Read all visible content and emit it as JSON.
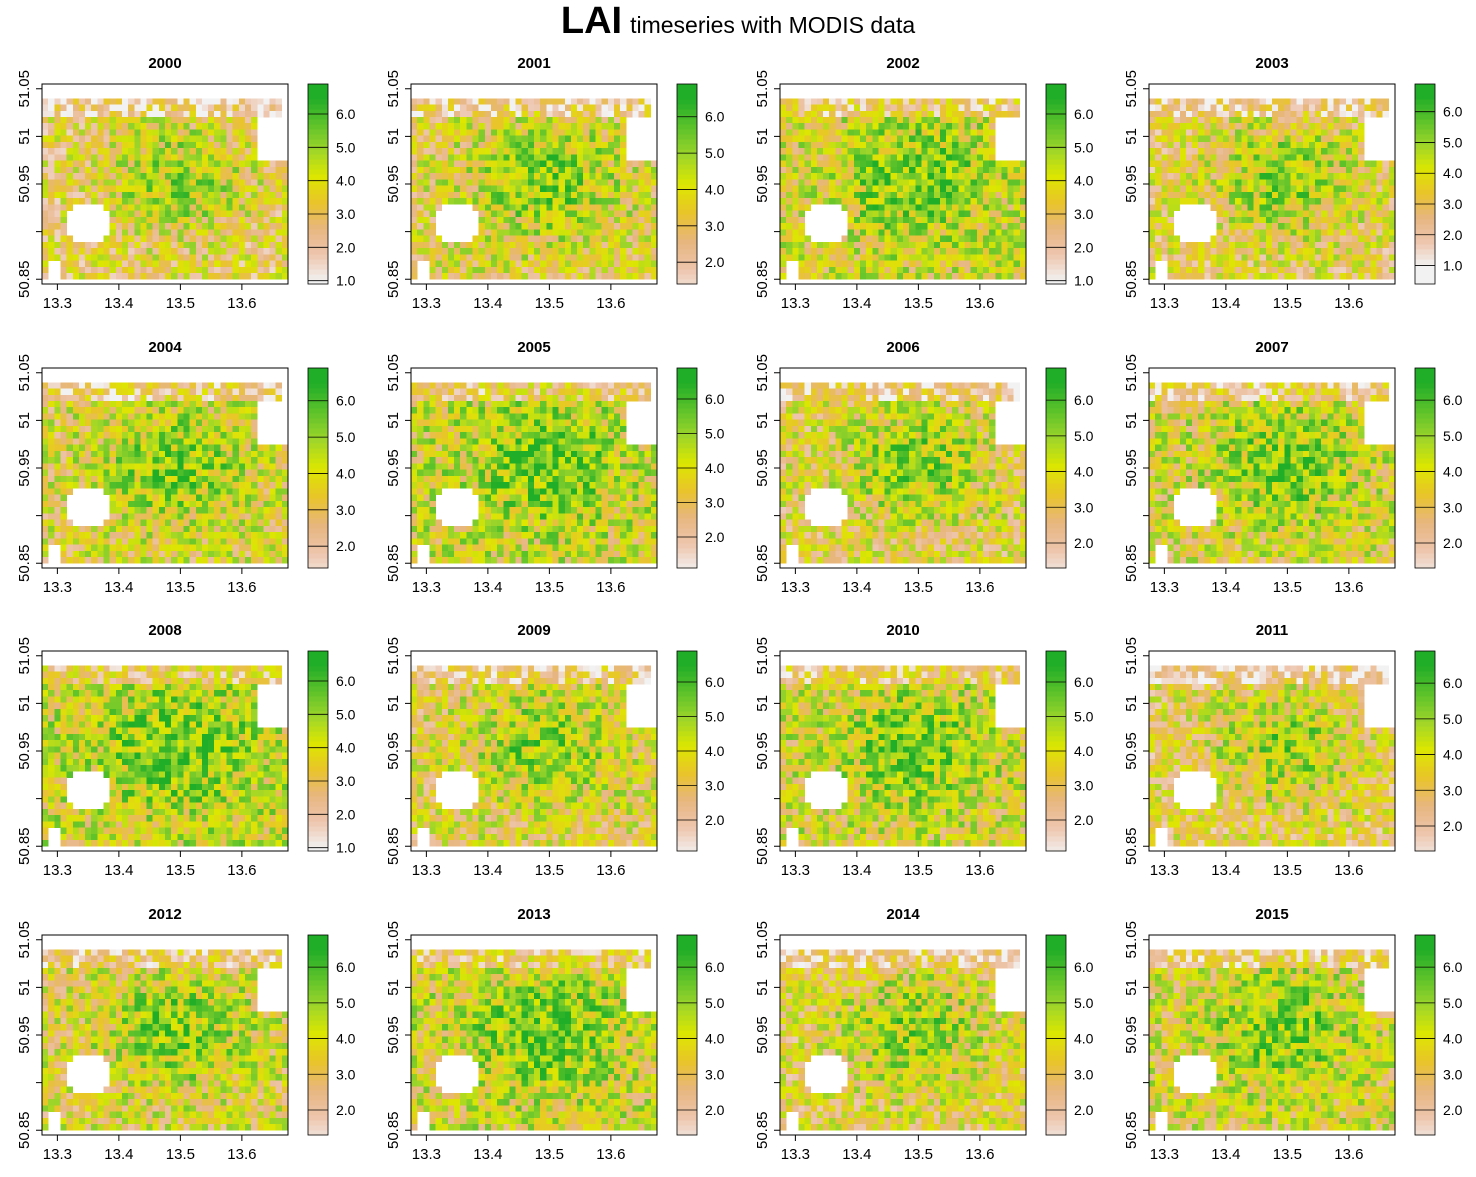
{
  "figure": {
    "title_main": "LAI",
    "title_rest": "timeseries with MODIS data"
  },
  "chart_data": {
    "type": "heatmap",
    "variable": "LAI",
    "colormap": [
      "#f2f2f2",
      "#eec6ae",
      "#e7b67f",
      "#e9c42a",
      "#dde700",
      "#9ed52a",
      "#5cc22a",
      "#20ad28"
    ],
    "color_range": [
      1.0,
      6.5
    ],
    "nodata_color": "#ffffff",
    "x_ticks": [
      "13.3",
      "13.4",
      "13.5",
      "13.6"
    ],
    "x_tick_values": [
      13.3,
      13.4,
      13.5,
      13.6
    ],
    "y_ticks": [
      "50.85",
      "",
      "50.95",
      "51",
      "51.05"
    ],
    "y_tick_values": [
      50.85,
      50.9,
      50.95,
      51.0,
      51.05
    ],
    "xlim": [
      13.275,
      13.675
    ],
    "ylim": [
      50.845,
      51.055
    ],
    "extent": {
      "x": [
        13.275,
        13.675
      ],
      "y": [
        50.85,
        51.04
      ]
    },
    "panels": [
      {
        "year": "2000",
        "legend_ticks": [
          "1.0",
          "2.0",
          "3.0",
          "4.0",
          "5.0",
          "6.0"
        ],
        "legend_min": 0.9,
        "legend_max": 6.9
      },
      {
        "year": "2001",
        "legend_ticks": [
          "2.0",
          "3.0",
          "4.0",
          "5.0",
          "6.0"
        ],
        "legend_min": 1.4,
        "legend_max": 6.9
      },
      {
        "year": "2002",
        "legend_ticks": [
          "1.0",
          "2.0",
          "3.0",
          "4.0",
          "5.0",
          "6.0"
        ],
        "legend_min": 0.9,
        "legend_max": 6.9
      },
      {
        "year": "2003",
        "legend_ticks": [
          "1.0",
          "2.0",
          "3.0",
          "4.0",
          "5.0",
          "6.0"
        ],
        "legend_min": 0.4,
        "legend_max": 6.9
      },
      {
        "year": "2004",
        "legend_ticks": [
          "2.0",
          "3.0",
          "4.0",
          "5.0",
          "6.0"
        ],
        "legend_min": 1.4,
        "legend_max": 6.9
      },
      {
        "year": "2005",
        "legend_ticks": [
          "2.0",
          "3.0",
          "4.0",
          "5.0",
          "6.0"
        ],
        "legend_min": 1.1,
        "legend_max": 6.9
      },
      {
        "year": "2006",
        "legend_ticks": [
          "2.0",
          "3.0",
          "4.0",
          "5.0",
          "6.0"
        ],
        "legend_min": 1.3,
        "legend_max": 6.9
      },
      {
        "year": "2007",
        "legend_ticks": [
          "2.0",
          "3.0",
          "4.0",
          "5.0",
          "6.0"
        ],
        "legend_min": 1.3,
        "legend_max": 6.9
      },
      {
        "year": "2008",
        "legend_ticks": [
          "1.0",
          "2.0",
          "3.0",
          "4.0",
          "5.0",
          "6.0"
        ],
        "legend_min": 0.9,
        "legend_max": 6.9
      },
      {
        "year": "2009",
        "legend_ticks": [
          "2.0",
          "3.0",
          "4.0",
          "5.0",
          "6.0"
        ],
        "legend_min": 1.1,
        "legend_max": 6.9
      },
      {
        "year": "2010",
        "legend_ticks": [
          "2.0",
          "3.0",
          "4.0",
          "5.0",
          "6.0"
        ],
        "legend_min": 1.1,
        "legend_max": 6.9
      },
      {
        "year": "2011",
        "legend_ticks": [
          "2.0",
          "3.0",
          "4.0",
          "5.0",
          "6.0"
        ],
        "legend_min": 1.3,
        "legend_max": 6.9
      },
      {
        "year": "2012",
        "legend_ticks": [
          "2.0",
          "3.0",
          "4.0",
          "5.0",
          "6.0"
        ],
        "legend_min": 1.3,
        "legend_max": 6.9
      },
      {
        "year": "2013",
        "legend_ticks": [
          "2.0",
          "3.0",
          "4.0",
          "5.0",
          "6.0"
        ],
        "legend_min": 1.3,
        "legend_max": 6.9
      },
      {
        "year": "2014",
        "legend_ticks": [
          "2.0",
          "3.0",
          "4.0",
          "5.0",
          "6.0"
        ],
        "legend_min": 1.3,
        "legend_max": 6.9
      },
      {
        "year": "2015",
        "legend_ticks": [
          "2.0",
          "3.0",
          "4.0",
          "5.0",
          "6.0"
        ],
        "legend_min": 1.3,
        "legend_max": 6.9
      }
    ]
  }
}
